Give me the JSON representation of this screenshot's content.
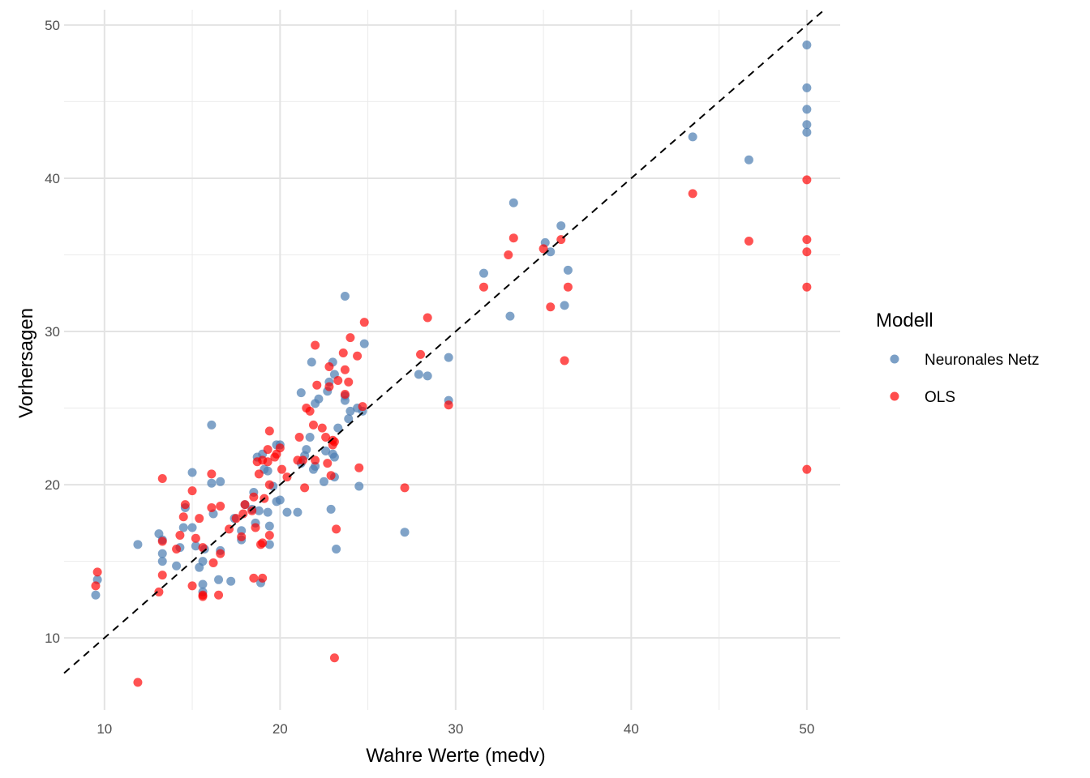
{
  "chart_data": {
    "type": "scatter",
    "xlabel": "Wahre Werte (medv)",
    "ylabel": "Vorhersagen",
    "xlim": [
      7.7,
      51.9
    ],
    "ylim": [
      5.3,
      51.0
    ],
    "x_ticks": [
      "10",
      "20",
      "30",
      "40",
      "50"
    ],
    "y_ticks": [
      "10",
      "20",
      "30",
      "40",
      "50"
    ],
    "grid": true,
    "reference_line": {
      "style": "dashed",
      "slope": 1,
      "intercept": 0,
      "color": "#000000"
    },
    "legend": {
      "title": "Modell",
      "position": "right"
    },
    "series": [
      {
        "name": "Neuronales Netz",
        "color": "#4f7fb3",
        "points": [
          [
            9.5,
            12.8
          ],
          [
            9.6,
            13.8
          ],
          [
            11.9,
            16.1
          ],
          [
            13.1,
            16.8
          ],
          [
            13.3,
            16.4
          ],
          [
            13.3,
            15.5
          ],
          [
            13.3,
            15.0
          ],
          [
            14.1,
            14.7
          ],
          [
            14.3,
            15.9
          ],
          [
            14.5,
            17.2
          ],
          [
            14.6,
            18.5
          ],
          [
            15.0,
            20.8
          ],
          [
            15.0,
            17.2
          ],
          [
            15.2,
            16.0
          ],
          [
            15.4,
            14.6
          ],
          [
            15.6,
            15.0
          ],
          [
            15.6,
            13.5
          ],
          [
            15.6,
            13.0
          ],
          [
            15.7,
            15.8
          ],
          [
            16.1,
            23.9
          ],
          [
            16.1,
            20.1
          ],
          [
            16.2,
            18.1
          ],
          [
            16.5,
            13.8
          ],
          [
            16.6,
            15.7
          ],
          [
            16.6,
            20.2
          ],
          [
            17.2,
            13.7
          ],
          [
            17.4,
            17.8
          ],
          [
            17.8,
            17.0
          ],
          [
            17.8,
            16.4
          ],
          [
            18.0,
            18.7
          ],
          [
            18.4,
            18.4
          ],
          [
            18.5,
            19.5
          ],
          [
            18.6,
            17.5
          ],
          [
            18.7,
            21.8
          ],
          [
            18.8,
            18.3
          ],
          [
            18.9,
            13.6
          ],
          [
            19.0,
            22.0
          ],
          [
            19.1,
            21.0
          ],
          [
            19.3,
            20.9
          ],
          [
            19.3,
            18.2
          ],
          [
            19.4,
            17.3
          ],
          [
            19.4,
            16.1
          ],
          [
            19.6,
            19.9
          ],
          [
            19.8,
            22.6
          ],
          [
            19.8,
            18.9
          ],
          [
            20.0,
            22.6
          ],
          [
            20.0,
            19.0
          ],
          [
            20.4,
            18.2
          ],
          [
            21.0,
            18.2
          ],
          [
            21.2,
            26.0
          ],
          [
            21.2,
            21.4
          ],
          [
            21.4,
            21.9
          ],
          [
            21.5,
            22.3
          ],
          [
            21.7,
            23.1
          ],
          [
            21.8,
            28.0
          ],
          [
            21.9,
            21.0
          ],
          [
            22.0,
            21.2
          ],
          [
            22.0,
            25.3
          ],
          [
            22.2,
            25.6
          ],
          [
            22.5,
            20.2
          ],
          [
            22.6,
            22.2
          ],
          [
            22.7,
            26.1
          ],
          [
            22.8,
            26.7
          ],
          [
            22.9,
            18.4
          ],
          [
            23.0,
            28.0
          ],
          [
            23.0,
            22.0
          ],
          [
            23.1,
            27.2
          ],
          [
            23.1,
            20.5
          ],
          [
            23.1,
            21.8
          ],
          [
            23.2,
            15.8
          ],
          [
            23.3,
            23.7
          ],
          [
            23.7,
            32.3
          ],
          [
            23.7,
            25.8
          ],
          [
            23.7,
            25.5
          ],
          [
            23.9,
            24.3
          ],
          [
            24.0,
            24.8
          ],
          [
            24.4,
            25.0
          ],
          [
            24.5,
            19.9
          ],
          [
            24.7,
            24.8
          ],
          [
            24.8,
            29.2
          ],
          [
            27.1,
            16.9
          ],
          [
            27.9,
            27.2
          ],
          [
            28.4,
            27.1
          ],
          [
            29.6,
            28.3
          ],
          [
            29.6,
            25.5
          ],
          [
            31.6,
            33.8
          ],
          [
            33.1,
            31.0
          ],
          [
            33.3,
            38.4
          ],
          [
            35.1,
            35.8
          ],
          [
            35.4,
            35.2
          ],
          [
            36.0,
            36.9
          ],
          [
            36.2,
            31.7
          ],
          [
            36.4,
            34.0
          ],
          [
            43.5,
            42.7
          ],
          [
            46.7,
            41.2
          ],
          [
            50.0,
            48.7
          ],
          [
            50.0,
            45.9
          ],
          [
            50.0,
            44.5
          ],
          [
            50.0,
            43.5
          ],
          [
            50.0,
            43.0
          ]
        ]
      },
      {
        "name": "OLS",
        "color": "#ff0000",
        "points": [
          [
            9.5,
            13.4
          ],
          [
            9.6,
            14.3
          ],
          [
            11.9,
            7.1
          ],
          [
            13.1,
            13.0
          ],
          [
            13.3,
            20.4
          ],
          [
            13.3,
            16.3
          ],
          [
            13.3,
            14.1
          ],
          [
            14.1,
            15.8
          ],
          [
            14.3,
            16.7
          ],
          [
            14.5,
            17.9
          ],
          [
            14.6,
            18.7
          ],
          [
            15.0,
            19.6
          ],
          [
            15.0,
            13.4
          ],
          [
            15.2,
            16.5
          ],
          [
            15.4,
            17.8
          ],
          [
            15.6,
            15.9
          ],
          [
            15.6,
            12.8
          ],
          [
            15.6,
            12.7
          ],
          [
            16.1,
            20.7
          ],
          [
            16.1,
            18.5
          ],
          [
            16.2,
            14.9
          ],
          [
            16.5,
            12.8
          ],
          [
            16.6,
            18.6
          ],
          [
            16.6,
            15.5
          ],
          [
            17.1,
            17.1
          ],
          [
            17.5,
            17.8
          ],
          [
            17.8,
            16.6
          ],
          [
            17.9,
            18.1
          ],
          [
            18.0,
            18.7
          ],
          [
            18.4,
            18.3
          ],
          [
            18.5,
            19.2
          ],
          [
            18.5,
            13.9
          ],
          [
            18.6,
            17.2
          ],
          [
            18.7,
            21.5
          ],
          [
            18.8,
            20.7
          ],
          [
            18.9,
            16.1
          ],
          [
            19.0,
            21.6
          ],
          [
            19.0,
            16.2
          ],
          [
            19.0,
            13.9
          ],
          [
            19.1,
            19.1
          ],
          [
            19.3,
            22.3
          ],
          [
            19.3,
            21.5
          ],
          [
            19.4,
            23.5
          ],
          [
            19.4,
            20.0
          ],
          [
            19.4,
            16.7
          ],
          [
            19.7,
            21.8
          ],
          [
            19.8,
            22.0
          ],
          [
            20.0,
            22.4
          ],
          [
            20.1,
            21.0
          ],
          [
            20.4,
            20.5
          ],
          [
            21.0,
            21.6
          ],
          [
            21.1,
            23.1
          ],
          [
            21.3,
            21.6
          ],
          [
            21.4,
            19.8
          ],
          [
            21.5,
            25.0
          ],
          [
            21.7,
            24.8
          ],
          [
            21.9,
            23.9
          ],
          [
            22.0,
            29.1
          ],
          [
            22.0,
            21.6
          ],
          [
            22.1,
            26.5
          ],
          [
            22.4,
            23.7
          ],
          [
            22.6,
            23.1
          ],
          [
            22.7,
            21.4
          ],
          [
            22.8,
            27.7
          ],
          [
            22.8,
            26.4
          ],
          [
            22.9,
            20.6
          ],
          [
            23.0,
            22.9
          ],
          [
            23.0,
            22.6
          ],
          [
            23.1,
            8.7
          ],
          [
            23.1,
            22.8
          ],
          [
            23.2,
            17.1
          ],
          [
            23.3,
            26.8
          ],
          [
            23.6,
            28.6
          ],
          [
            23.7,
            27.5
          ],
          [
            23.7,
            25.9
          ],
          [
            23.9,
            26.7
          ],
          [
            24.0,
            29.6
          ],
          [
            24.4,
            28.4
          ],
          [
            24.5,
            21.1
          ],
          [
            24.7,
            25.1
          ],
          [
            24.8,
            30.6
          ],
          [
            27.1,
            19.8
          ],
          [
            28.0,
            28.5
          ],
          [
            28.4,
            30.9
          ],
          [
            29.6,
            25.2
          ],
          [
            31.6,
            32.9
          ],
          [
            33.0,
            35.0
          ],
          [
            33.3,
            36.1
          ],
          [
            35.0,
            35.4
          ],
          [
            35.4,
            31.6
          ],
          [
            36.0,
            36.0
          ],
          [
            36.2,
            28.1
          ],
          [
            36.4,
            32.9
          ],
          [
            43.5,
            39.0
          ],
          [
            46.7,
            35.9
          ],
          [
            50.0,
            39.9
          ],
          [
            50.0,
            36.0
          ],
          [
            50.0,
            35.2
          ],
          [
            50.0,
            32.9
          ],
          [
            50.0,
            21.0
          ]
        ]
      }
    ]
  }
}
